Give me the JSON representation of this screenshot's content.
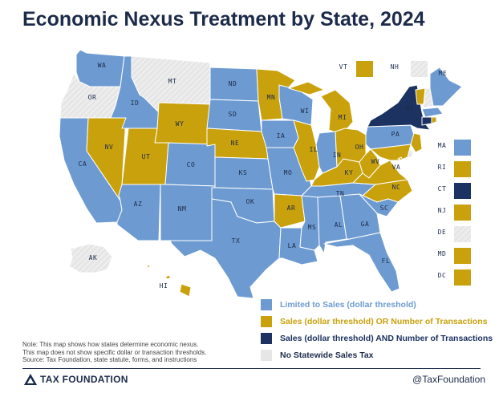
{
  "title": "Economic Nexus Treatment by State, 2024",
  "colors": {
    "sales_only": "#6d9bd1",
    "sales_or_transactions": "#c9a10c",
    "sales_and_transactions": "#1c3260",
    "no_sales_tax": "#e6e6e6",
    "border": "#ffffff",
    "label": "#1c2b4a"
  },
  "legend": [
    {
      "key": "sales_only",
      "label": "Limited to Sales (dollar threshold)"
    },
    {
      "key": "sales_or_transactions",
      "label": "Sales (dollar threshold) OR Number of Transactions"
    },
    {
      "key": "sales_and_transactions",
      "label": "Sales (dollar threshold) AND Number of Transactions"
    },
    {
      "key": "no_sales_tax",
      "label": "No Statewide Sales Tax"
    }
  ],
  "states": {
    "WA": "sales_only",
    "OR": "no_sales_tax",
    "CA": "sales_only",
    "NV": "sales_or_transactions",
    "ID": "sales_only",
    "MT": "no_sales_tax",
    "WY": "sales_or_transactions",
    "UT": "sales_or_transactions",
    "AZ": "sales_only",
    "CO": "sales_only",
    "NM": "sales_only",
    "ND": "sales_only",
    "SD": "sales_only",
    "NE": "sales_or_transactions",
    "KS": "sales_only",
    "OK": "sales_only",
    "TX": "sales_only",
    "MN": "sales_or_transactions",
    "IA": "sales_only",
    "MO": "sales_only",
    "AR": "sales_or_transactions",
    "LA": "sales_only",
    "WI": "sales_only",
    "IL": "sales_or_transactions",
    "MS": "sales_only",
    "MI": "sales_or_transactions",
    "IN": "sales_only",
    "KY": "sales_or_transactions",
    "TN": "sales_only",
    "AL": "sales_only",
    "GA": "sales_only",
    "FL": "sales_only",
    "OH": "sales_or_transactions",
    "WV": "sales_or_transactions",
    "VA": "sales_or_transactions",
    "NC": "sales_or_transactions",
    "SC": "sales_only",
    "PA": "sales_only",
    "NY": "sales_and_transactions",
    "ME": "sales_only",
    "VT": "sales_or_transactions",
    "NH": "no_sales_tax",
    "MA": "sales_only",
    "RI": "sales_or_transactions",
    "CT": "sales_and_transactions",
    "NJ": "sales_or_transactions",
    "DE": "no_sales_tax",
    "MD": "sales_or_transactions",
    "DC": "sales_or_transactions",
    "AK": "no_sales_tax",
    "HI": "sales_or_transactions"
  },
  "labels": {
    "WA": "WA",
    "OR": "OR",
    "CA": "CA",
    "NV": "NV",
    "ID": "ID",
    "MT": "MT",
    "WY": "WY",
    "UT": "UT",
    "AZ": "AZ",
    "CO": "CO",
    "NM": "NM",
    "ND": "ND",
    "SD": "SD",
    "NE": "NE",
    "KS": "KS",
    "OK": "OK",
    "TX": "TX",
    "MN": "MN",
    "IA": "IA",
    "MO": "MO",
    "AR": "AR",
    "LA": "LA",
    "WI": "WI",
    "IL": "IL",
    "MS": "MS",
    "MI": "MI",
    "IN": "IN",
    "KY": "KY",
    "TN": "TN",
    "AL": "AL",
    "GA": "GA",
    "FL": "FL",
    "OH": "OH",
    "WV": "WV",
    "VA": "VA",
    "NC": "NC",
    "SC": "SC",
    "PA": "PA",
    "NY": "NY",
    "ME": "ME",
    "AK": "AK",
    "HI": "HI"
  },
  "small_states": [
    {
      "code": "VT",
      "label": "VT"
    },
    {
      "code": "NH",
      "label": "NH"
    },
    {
      "code": "MA",
      "label": "MA"
    },
    {
      "code": "RI",
      "label": "RI"
    },
    {
      "code": "CT",
      "label": "CT"
    },
    {
      "code": "NJ",
      "label": "NJ"
    },
    {
      "code": "DE",
      "label": "DE"
    },
    {
      "code": "MD",
      "label": "MD"
    },
    {
      "code": "DC",
      "label": "DC"
    }
  ],
  "note": {
    "line1": "Note: This map shows how states determine economic nexus.",
    "line2": "This map does not show specific dollar or transaction thresholds.",
    "line3": "Source: Tax Foundation, state statute, forms, and instructions"
  },
  "footer": {
    "org": "TAX FOUNDATION",
    "handle": "@TaxFoundation"
  }
}
